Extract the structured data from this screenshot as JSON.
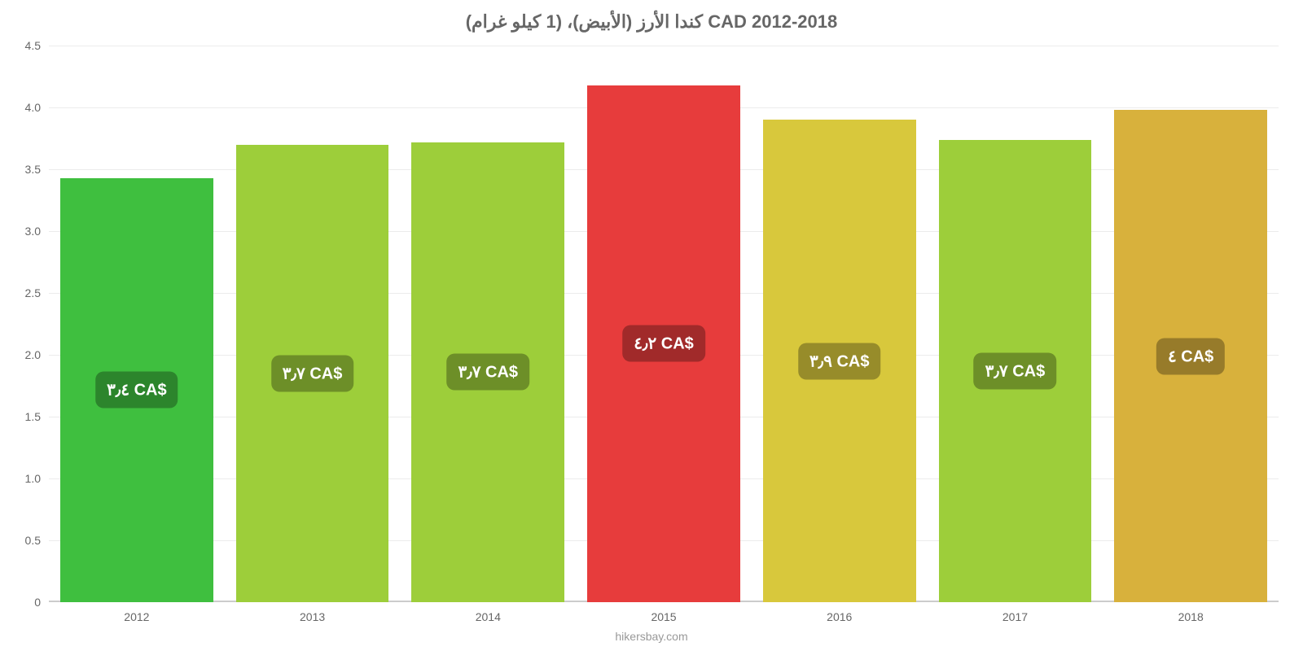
{
  "chart": {
    "type": "bar",
    "title": "كندا الأرز (الأبيض)، (1 كيلو غرام) CAD 2012-2018",
    "title_fontsize": 22,
    "title_color": "#666666",
    "source": "hikersbay.com",
    "source_color": "#999999",
    "background_color": "#ffffff",
    "grid_color": "#ececec",
    "baseline_color": "#cccccc",
    "axis_label_color": "#666666",
    "axis_fontsize": 14,
    "ylim": [
      0,
      4.5
    ],
    "ytick_step": 0.5,
    "ylabels": [
      "0",
      "0.5",
      "1.0",
      "1.5",
      "2.0",
      "2.5",
      "3.0",
      "3.5",
      "4.0",
      "4.5"
    ],
    "categories": [
      "2012",
      "2013",
      "2014",
      "2015",
      "2016",
      "2017",
      "2018"
    ],
    "values": [
      3.43,
      3.7,
      3.72,
      4.18,
      3.9,
      3.74,
      3.98
    ],
    "bar_colors": [
      "#3fbf3f",
      "#9dce3a",
      "#9dce3a",
      "#e73c3c",
      "#d8c83c",
      "#9dce3a",
      "#d8b13c"
    ],
    "bar_width": 0.87,
    "badges": [
      "٣٫٤ CA$",
      "٣٫٧ CA$",
      "٣٫٧ CA$",
      "٤٫٢ CA$",
      "٣٫٩ CA$",
      "٣٫٧ CA$",
      "٤ CA$"
    ],
    "badge_colors": [
      "#2c852c",
      "#6d8f28",
      "#6d8f28",
      "#a12a2a",
      "#978c2a",
      "#6d8f28",
      "#977b2a"
    ],
    "badge_text_color": "#ffffff",
    "badge_fontsize": 20,
    "badge_radius": 10
  }
}
